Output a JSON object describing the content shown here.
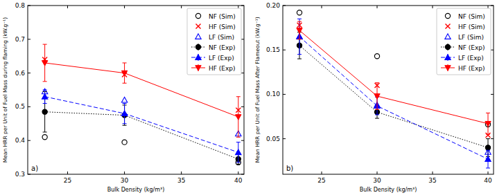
{
  "chart_data": [
    {
      "type": "line",
      "annotation": "a)",
      "x_label": "Bulk Density (kg/m³)",
      "y_label": "Mean HRR per Unit of Fuel Mass during flaming (kW.g⁻¹)",
      "x": [
        23,
        30,
        40
      ],
      "xlim": [
        21.5,
        40.5
      ],
      "xticks": [
        25,
        30,
        35,
        40
      ],
      "ylim": [
        0.3,
        0.8
      ],
      "yticks": [
        0.3,
        0.4,
        0.5,
        0.6,
        0.7,
        0.8
      ],
      "legend": "upper right",
      "series": [
        {
          "name": "NF (Sim)",
          "color": "#000000",
          "type": "scatter",
          "marker": "circle_open",
          "line_style": "none",
          "values": [
            0.41,
            0.395,
            0.335
          ]
        },
        {
          "name": "HF (Sim)",
          "color": "#ff0000",
          "type": "scatter",
          "marker": "x",
          "line_style": "none",
          "values": [
            0.64,
            0.595,
            0.49
          ]
        },
        {
          "name": "LF (Sim)",
          "color": "#0000ff",
          "type": "scatter",
          "marker": "triangle_open",
          "line_style": "none",
          "values": [
            0.545,
            0.52,
            0.42
          ]
        },
        {
          "name": "NF (Exp)",
          "color": "#000000",
          "type": "line",
          "marker": "circle",
          "line_style": "dotted",
          "values": [
            0.485,
            0.475,
            0.345
          ],
          "errors": [
            0.06,
            0.03,
            0.015
          ]
        },
        {
          "name": "LF (Exp)",
          "color": "#0000ff",
          "type": "line",
          "marker": "triangle",
          "line_style": "dashed",
          "values": [
            0.53,
            0.48,
            0.365
          ],
          "errors": [
            0.02,
            0.03,
            0.03
          ]
        },
        {
          "name": "HF (Exp)",
          "color": "#ff0000",
          "type": "line",
          "marker": "triangle_down",
          "line_style": "solid",
          "values": [
            0.63,
            0.6,
            0.47
          ],
          "errors": [
            0.055,
            0.03,
            0.06
          ]
        }
      ]
    },
    {
      "type": "line",
      "annotation": "b)",
      "x_label": "Bulk Density (kg/m³)",
      "y_label": "Mean HRR per Unit of Fuel Mass After Flameout (kW.g⁻¹)",
      "x": [
        23,
        30,
        40
      ],
      "xlim": [
        21.5,
        40.5
      ],
      "xticks": [
        25,
        30,
        35,
        40
      ],
      "ylim": [
        0.01,
        0.2
      ],
      "yticks": [
        0.05,
        {
          "value": 0.1,
          "label": "0.10"
        },
        0.15,
        {
          "value": 0.2,
          "label": "0.20"
        }
      ],
      "legend": "upper right",
      "series": [
        {
          "name": "NF (Sim)",
          "color": "#000000",
          "type": "scatter",
          "marker": "circle_open",
          "line_style": "none",
          "values": [
            0.192,
            0.143,
            0.066
          ]
        },
        {
          "name": "HF (Sim)",
          "color": "#ff0000",
          "type": "scatter",
          "marker": "x",
          "line_style": "none",
          "values": [
            0.178,
            0.11,
            0.054
          ]
        },
        {
          "name": "LF (Sim)",
          "color": "#0000ff",
          "type": "scatter",
          "marker": "triangle_open",
          "line_style": "none",
          "values": [
            0.165,
            0.088,
            0.035
          ]
        },
        {
          "name": "NF (Exp)",
          "color": "#000000",
          "type": "line",
          "marker": "circle",
          "line_style": "dotted",
          "values": [
            0.155,
            0.08,
            0.04
          ],
          "errors": [
            0.015,
            0.007,
            0.01
          ]
        },
        {
          "name": "LF (Exp)",
          "color": "#0000ff",
          "type": "line",
          "marker": "triangle",
          "line_style": "dashed",
          "values": [
            0.165,
            0.087,
            0.027
          ],
          "errors": [
            0.02,
            0.01,
            0.01
          ]
        },
        {
          "name": "HF (Exp)",
          "color": "#ff0000",
          "type": "line",
          "marker": "triangle_down",
          "line_style": "solid",
          "values": [
            0.172,
            0.098,
            0.067
          ],
          "errors": [
            0.01,
            0.015,
            0.012
          ]
        }
      ]
    }
  ]
}
